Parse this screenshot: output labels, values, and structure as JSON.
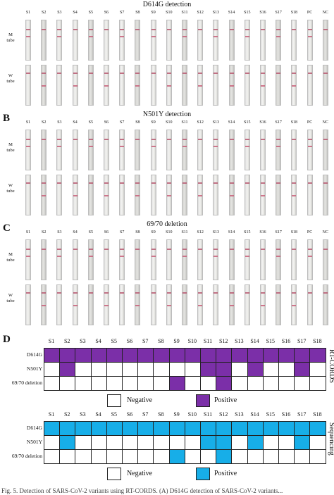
{
  "colors": {
    "purple": "#7b2fa8",
    "blue": "#17aee8",
    "band": "#c8607a",
    "white": "#ffffff"
  },
  "samples": [
    "S1",
    "S2",
    "S3",
    "S4",
    "S5",
    "S6",
    "S7",
    "S8",
    "S9",
    "S10",
    "S11",
    "S12",
    "S13",
    "S14",
    "S15",
    "S16",
    "S17",
    "S18",
    "PC",
    "NC"
  ],
  "panels": [
    {
      "letter": "",
      "title": "D614G detection",
      "m_tube": "M\ntube",
      "w_tube": "W\ntube"
    },
    {
      "letter": "B",
      "title": "N501Y detection",
      "m_tube": "M\ntube",
      "w_tube": "W\ntube"
    },
    {
      "letter": "C",
      "title": "69/70 deletion",
      "m_tube": "M\ntube",
      "w_tube": "W\ntube"
    }
  ],
  "panel_d": {
    "letter": "D",
    "columns": [
      "S1",
      "S2",
      "S3",
      "S4",
      "S5",
      "S6",
      "S7",
      "S8",
      "S9",
      "S10",
      "S11",
      "S12",
      "S13",
      "S14",
      "S15",
      "S16",
      "S17",
      "S18"
    ],
    "rt_cords": {
      "side_label": "RT-CORDS",
      "rows": [
        {
          "label": "D614G",
          "values": [
            1,
            1,
            1,
            1,
            1,
            1,
            1,
            1,
            1,
            1,
            1,
            1,
            1,
            1,
            1,
            1,
            1,
            1
          ]
        },
        {
          "label": "N501Y",
          "values": [
            0,
            1,
            0,
            0,
            0,
            0,
            0,
            0,
            0,
            0,
            1,
            1,
            0,
            1,
            0,
            0,
            1,
            0
          ]
        },
        {
          "label": "69/70 deletion",
          "values": [
            0,
            0,
            0,
            0,
            0,
            0,
            0,
            0,
            1,
            0,
            0,
            1,
            0,
            0,
            0,
            0,
            0,
            0
          ]
        }
      ],
      "legend": {
        "negative": "Negative",
        "positive": "Positive"
      }
    },
    "sequencing": {
      "side_label": "Sequencing",
      "rows": [
        {
          "label": "D614G",
          "values": [
            1,
            1,
            1,
            1,
            1,
            1,
            1,
            1,
            1,
            1,
            1,
            1,
            1,
            1,
            1,
            1,
            1,
            1
          ]
        },
        {
          "label": "N501Y",
          "values": [
            0,
            1,
            0,
            0,
            0,
            0,
            0,
            0,
            0,
            0,
            1,
            1,
            0,
            1,
            0,
            0,
            1,
            0
          ]
        },
        {
          "label": "69/70 deletion",
          "values": [
            0,
            0,
            0,
            0,
            0,
            0,
            0,
            0,
            1,
            0,
            0,
            1,
            0,
            0,
            0,
            0,
            0,
            0
          ]
        }
      ],
      "legend": {
        "negative": "Negative",
        "positive": "Positive"
      }
    }
  },
  "caption": "Fig. 5. Detection of SARS-CoV-2 variants using RT-CORDS. (A) D614G detection of SARS-CoV-2 variants..."
}
